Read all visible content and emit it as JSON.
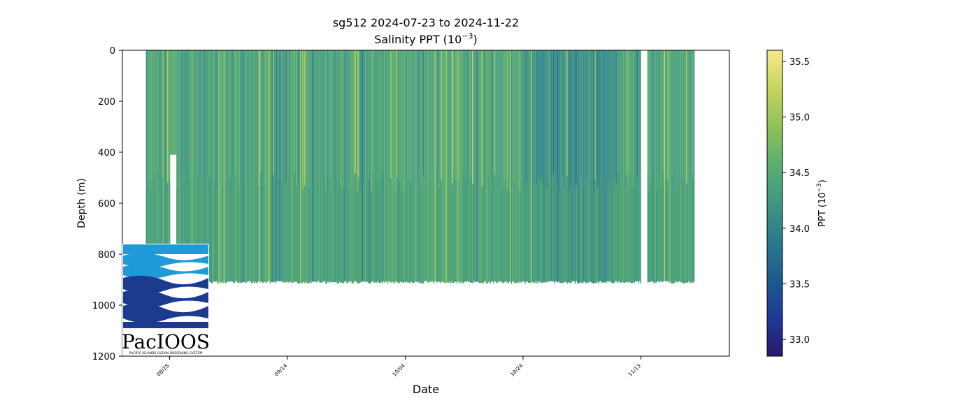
{
  "chart_data": {
    "type": "heatmap",
    "title": "sg512 2024-07-23 to 2024-11-22",
    "subtitle_prefix": "Salinity PPT (10",
    "subtitle_exp": "−3",
    "subtitle_suffix": ")",
    "xlabel": "Date",
    "ylabel": "Depth (m)",
    "x_ticks": [
      "08/25",
      "09/14",
      "10/04",
      "10/24",
      "11/13"
    ],
    "y_ticks": [
      "0",
      "200",
      "400",
      "600",
      "800",
      "1000",
      "1200"
    ],
    "y_tick_values": [
      0,
      200,
      400,
      600,
      800,
      1000,
      1200
    ],
    "y_inverted": true,
    "ylim": [
      1200,
      0
    ],
    "xlim": [
      "2024-08-17",
      "2024-11-28"
    ],
    "data_extent": {
      "start": "2024-08-21",
      "end": "2024-11-22",
      "max_depth_m": 910,
      "gaps": [
        {
          "start": "2024-08-25",
          "end": "2024-08-26",
          "from_depth_m": 410,
          "to_depth_m": 1200
        },
        {
          "start": "2024-11-13",
          "end": "2024-11-14",
          "from_depth_m": 0,
          "to_depth_m": 1200
        }
      ]
    },
    "typical_salinity": 34.4,
    "colorbar": {
      "label_prefix": "PPT (10",
      "label_exp": "−3",
      "label_suffix": ")",
      "range": [
        32.85,
        35.6
      ],
      "ticks": [
        "33.0",
        "33.5",
        "34.0",
        "34.5",
        "35.0",
        "35.5"
      ],
      "tick_values": [
        33.0,
        33.5,
        34.0,
        34.5,
        35.0,
        35.5
      ],
      "colormap": "haline",
      "colors": [
        "#29186b",
        "#1f3a96",
        "#1c5b8f",
        "#2b7a8b",
        "#3f9684",
        "#5aae6f",
        "#8fc257",
        "#c6d45c",
        "#f6ea8c"
      ]
    },
    "grid": false
  },
  "logo": {
    "text": "PacIOOS",
    "tagline": "PACIFIC ISLANDS OCEAN OBSERVING SYSTEM",
    "light_blue": "#1e9ad8",
    "dark_blue": "#1c3a8e"
  }
}
